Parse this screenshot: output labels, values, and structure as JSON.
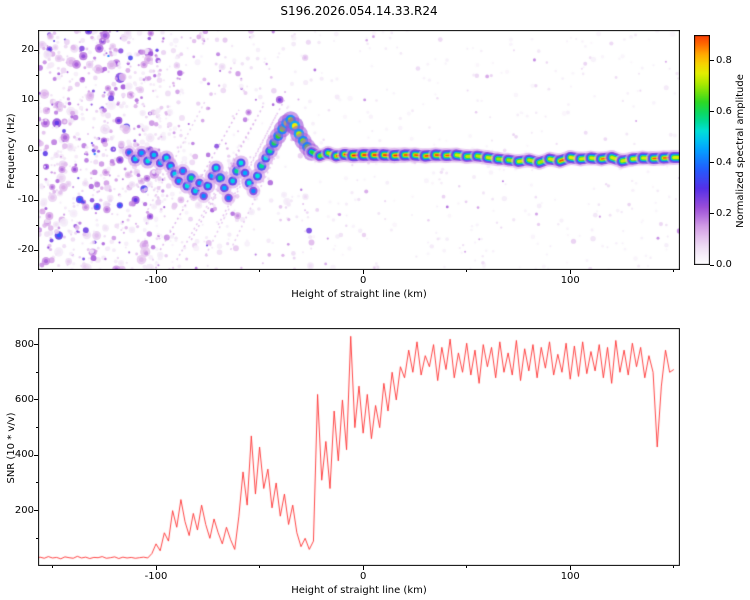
{
  "title": "S196.2026.054.14.33.R24",
  "chart_data": [
    {
      "type": "heatmap",
      "title": "S196.2026.054.14.33.R24",
      "xlabel": "Height of straight line (km)",
      "ylabel": "Frequency (Hz)",
      "xlim": [
        -157,
        153
      ],
      "ylim": [
        -24,
        24
      ],
      "xticks": [
        -100,
        0,
        100
      ],
      "xticks_minor": [
        -150,
        -50,
        50,
        150
      ],
      "yticks": [
        -20,
        -10,
        0,
        10,
        20
      ],
      "yticks_minor": [
        -15,
        -5,
        5,
        15
      ],
      "grid": false,
      "colorbar": {
        "label": "Normalized spectral amplitude",
        "ticks": [
          "0.0",
          "0.2",
          "0.4",
          "0.6",
          "0.8"
        ],
        "tick_values": [
          0,
          0.2,
          0.4,
          0.6,
          0.8
        ],
        "range": [
          0,
          0.9
        ],
        "stops": [
          [
            0.0,
            "#ffffff"
          ],
          [
            0.06,
            "#f2e6f7"
          ],
          [
            0.14,
            "#d9a8e8"
          ],
          [
            0.22,
            "#a050d8"
          ],
          [
            0.3,
            "#5530e8"
          ],
          [
            0.38,
            "#2060ff"
          ],
          [
            0.46,
            "#00aaff"
          ],
          [
            0.52,
            "#00e0e0"
          ],
          [
            0.58,
            "#00d878"
          ],
          [
            0.64,
            "#30d820"
          ],
          [
            0.7,
            "#a0e800"
          ],
          [
            0.76,
            "#f0f000"
          ],
          [
            0.82,
            "#ffb000"
          ],
          [
            0.88,
            "#ff5000"
          ],
          [
            0.94,
            "#f01010"
          ],
          [
            1.0,
            "#c00030"
          ]
        ]
      },
      "noise": {
        "dense": {
          "x_range": [
            -157,
            -100
          ],
          "count": 700,
          "amp": [
            0.05,
            0.4
          ],
          "radius": [
            1,
            5.5
          ]
        },
        "sparse": {
          "x_range": [
            -100,
            -24
          ],
          "count": 420,
          "amp": [
            0.04,
            0.3
          ],
          "radius": [
            1,
            4
          ],
          "bias": 1.7
        },
        "faint": {
          "x_range": [
            -24,
            153
          ],
          "count": 380,
          "amp": [
            0.03,
            0.14
          ],
          "radius": [
            1,
            3
          ]
        }
      },
      "streaks": [
        [
          -98,
          -20,
          -60,
          8,
          0.14
        ],
        [
          -90,
          -22,
          -52,
          6,
          0.12
        ],
        [
          -83,
          -18,
          -48,
          9,
          0.13
        ],
        [
          -76,
          -21,
          -42,
          7,
          0.11
        ],
        [
          -70,
          -15,
          -38,
          10,
          0.12
        ],
        [
          -104,
          -12,
          -76,
          10,
          0.1
        ],
        [
          -64,
          -20,
          -34,
          6,
          0.11
        ]
      ],
      "track_blobs": [
        [
          -113,
          -0.5,
          0.4
        ],
        [
          -110,
          -1.8,
          0.5
        ],
        [
          -107,
          -0.6,
          0.45
        ],
        [
          -104,
          -2.2,
          0.52
        ],
        [
          -101,
          -1.0,
          0.48
        ],
        [
          -98,
          -2.6,
          0.45
        ],
        [
          -95,
          -1.6,
          0.52
        ],
        [
          -93,
          -3.2,
          0.48
        ],
        [
          -91,
          -4.8,
          0.5
        ],
        [
          -89,
          -6.2,
          0.46
        ],
        [
          -87,
          -4.2,
          0.44
        ],
        [
          -85,
          -7.2,
          0.52
        ],
        [
          -83,
          -5.6,
          0.56
        ],
        [
          -81,
          -8.2,
          0.5
        ],
        [
          -79,
          -6.6,
          0.46
        ],
        [
          -77,
          -9.2,
          0.42
        ],
        [
          -75,
          -7.2,
          0.5
        ],
        [
          -73,
          -5.2,
          0.46
        ],
        [
          -71,
          -3.6,
          0.52
        ],
        [
          -69,
          -5.6,
          0.56
        ],
        [
          -67,
          -7.6,
          0.46
        ],
        [
          -65,
          -9.6,
          0.42
        ],
        [
          -63,
          -6.2,
          0.5
        ],
        [
          -61,
          -4.2,
          0.56
        ],
        [
          -59,
          -2.6,
          0.52
        ],
        [
          -57,
          -4.6,
          0.46
        ],
        [
          -55,
          -6.6,
          0.52
        ],
        [
          -53,
          -8.2,
          0.42
        ],
        [
          -51,
          -5.2,
          0.52
        ],
        [
          -49,
          -3.2,
          0.56
        ],
        [
          -47,
          -1.6,
          0.52
        ],
        [
          -45,
          -0.2,
          0.56
        ],
        [
          -43,
          1.4,
          0.6
        ],
        [
          -41,
          2.8,
          0.64
        ],
        [
          -39,
          4.2,
          0.68
        ],
        [
          -37,
          5.4,
          0.72
        ],
        [
          -35,
          6.0,
          0.7
        ],
        [
          -33,
          4.8,
          0.76
        ],
        [
          -31,
          3.2,
          0.72
        ],
        [
          -29,
          1.8,
          0.68
        ],
        [
          -27,
          0.6,
          0.66
        ],
        [
          -25,
          -0.4,
          0.7
        ]
      ],
      "band": [
        [
          -25,
          -0.4,
          0.72
        ],
        [
          -21,
          -1.2,
          0.78
        ],
        [
          -17,
          -0.6,
          0.82
        ],
        [
          -13,
          -1.2,
          0.88
        ],
        [
          -9,
          -0.9,
          0.93
        ],
        [
          -5,
          -1.1,
          0.95
        ],
        [
          0,
          -1.0,
          0.97
        ],
        [
          5,
          -1.0,
          0.95
        ],
        [
          10,
          -1.0,
          0.97
        ],
        [
          15,
          -1.1,
          0.94
        ],
        [
          20,
          -1.0,
          0.96
        ],
        [
          25,
          -1.0,
          0.9
        ],
        [
          30,
          -1.2,
          0.95
        ],
        [
          35,
          -1.0,
          0.92
        ],
        [
          40,
          -1.1,
          0.96
        ],
        [
          45,
          -1.0,
          0.86
        ],
        [
          50,
          -1.3,
          0.91
        ],
        [
          55,
          -1.2,
          0.82
        ],
        [
          60,
          -1.5,
          0.9
        ],
        [
          65,
          -1.8,
          0.86
        ],
        [
          70,
          -2.0,
          0.82
        ],
        [
          75,
          -2.3,
          0.86
        ],
        [
          80,
          -2.0,
          0.9
        ],
        [
          85,
          -2.5,
          0.82
        ],
        [
          90,
          -1.8,
          0.86
        ],
        [
          95,
          -2.2,
          0.9
        ],
        [
          100,
          -1.5,
          0.94
        ],
        [
          105,
          -1.8,
          0.86
        ],
        [
          110,
          -1.6,
          0.9
        ],
        [
          115,
          -1.8,
          0.88
        ],
        [
          120,
          -1.5,
          0.92
        ],
        [
          125,
          -2.2,
          0.86
        ],
        [
          130,
          -1.8,
          0.9
        ],
        [
          135,
          -1.6,
          0.88
        ],
        [
          140,
          -1.7,
          0.9
        ],
        [
          145,
          -1.6,
          0.92
        ],
        [
          150,
          -1.5,
          0.9
        ],
        [
          153,
          -1.5,
          0.88
        ]
      ]
    },
    {
      "type": "line",
      "xlabel": "Height of straight line (km)",
      "ylabel": "SNR (10 * v/v)",
      "xlim": [
        -157,
        153
      ],
      "ylim": [
        0,
        860
      ],
      "xticks": [
        -100,
        0,
        100
      ],
      "xticks_minor": [
        -150,
        -50,
        50,
        150
      ],
      "yticks": [
        200,
        400,
        600,
        800
      ],
      "yticks_minor": [
        100,
        300,
        500,
        700
      ],
      "grid": false,
      "color": "#ff3333",
      "x_start": -160,
      "x_step": 2,
      "y": [
        30,
        27,
        32,
        28,
        34,
        29,
        31,
        26,
        33,
        30,
        28,
        35,
        29,
        32,
        27,
        31,
        30,
        34,
        28,
        30,
        33,
        27,
        32,
        29,
        31,
        28,
        30,
        32,
        29,
        45,
        80,
        55,
        120,
        90,
        200,
        140,
        240,
        160,
        110,
        190,
        130,
        220,
        150,
        100,
        170,
        120,
        80,
        140,
        95,
        60,
        180,
        340,
        220,
        470,
        260,
        430,
        280,
        350,
        210,
        300,
        180,
        260,
        150,
        220,
        120,
        70,
        100,
        60,
        90,
        620,
        310,
        450,
        280,
        560,
        380,
        600,
        420,
        830,
        500,
        650,
        480,
        620,
        460,
        580,
        500,
        660,
        560,
        700,
        600,
        720,
        680,
        780,
        700,
        810,
        690,
        760,
        720,
        800,
        670,
        790,
        710,
        820,
        680,
        770,
        700,
        805,
        690,
        780,
        660,
        800,
        720,
        790,
        680,
        810,
        700,
        770,
        690,
        815,
        670,
        785,
        705,
        800,
        680,
        790,
        715,
        810,
        690,
        765,
        700,
        805,
        675,
        795,
        685,
        810,
        695,
        775,
        705,
        800,
        680,
        790,
        660,
        815,
        700,
        780,
        690,
        805,
        720,
        790,
        680,
        760,
        700,
        430,
        650,
        780,
        700,
        710
      ]
    }
  ]
}
